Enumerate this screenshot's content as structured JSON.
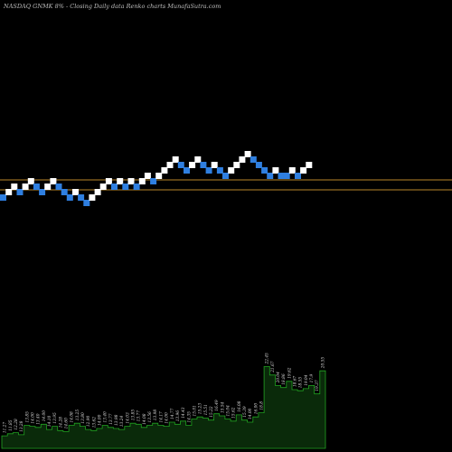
{
  "chart_data": {
    "type": "renko",
    "title": "NASDAQ GNMK 8% - Closing Daily data Renko charts MunafaSutra.com",
    "colors": {
      "background": "#000000",
      "up_brick": "#ffffff",
      "down_brick": "#2f7fe0",
      "reference_line": "#b8862a",
      "volume_fill": "#0a2a0a",
      "volume_stroke": "#21a321",
      "volume_label": "#d8d8d8"
    },
    "bricks": [
      {
        "d": "down",
        "l": 0
      },
      {
        "d": "up",
        "l": 1
      },
      {
        "d": "up",
        "l": 2
      },
      {
        "d": "down",
        "l": 1
      },
      {
        "d": "up",
        "l": 2
      },
      {
        "d": "up",
        "l": 3
      },
      {
        "d": "down",
        "l": 2
      },
      {
        "d": "down",
        "l": 1
      },
      {
        "d": "up",
        "l": 2
      },
      {
        "d": "up",
        "l": 3
      },
      {
        "d": "down",
        "l": 2
      },
      {
        "d": "down",
        "l": 1
      },
      {
        "d": "down",
        "l": 0
      },
      {
        "d": "up",
        "l": 1
      },
      {
        "d": "down",
        "l": 0
      },
      {
        "d": "down",
        "l": -1
      },
      {
        "d": "up",
        "l": 0
      },
      {
        "d": "up",
        "l": 1
      },
      {
        "d": "up",
        "l": 2
      },
      {
        "d": "up",
        "l": 3
      },
      {
        "d": "down",
        "l": 2
      },
      {
        "d": "up",
        "l": 3
      },
      {
        "d": "down",
        "l": 2
      },
      {
        "d": "up",
        "l": 3
      },
      {
        "d": "down",
        "l": 2
      },
      {
        "d": "up",
        "l": 3
      },
      {
        "d": "up",
        "l": 4
      },
      {
        "d": "down",
        "l": 3
      },
      {
        "d": "up",
        "l": 4
      },
      {
        "d": "up",
        "l": 5
      },
      {
        "d": "up",
        "l": 6
      },
      {
        "d": "up",
        "l": 7
      },
      {
        "d": "down",
        "l": 6
      },
      {
        "d": "down",
        "l": 5
      },
      {
        "d": "up",
        "l": 6
      },
      {
        "d": "up",
        "l": 7
      },
      {
        "d": "down",
        "l": 6
      },
      {
        "d": "down",
        "l": 5
      },
      {
        "d": "up",
        "l": 6
      },
      {
        "d": "down",
        "l": 5
      },
      {
        "d": "down",
        "l": 4
      },
      {
        "d": "up",
        "l": 5
      },
      {
        "d": "up",
        "l": 6
      },
      {
        "d": "up",
        "l": 7
      },
      {
        "d": "up",
        "l": 8
      },
      {
        "d": "down",
        "l": 7
      },
      {
        "d": "down",
        "l": 6
      },
      {
        "d": "down",
        "l": 5
      },
      {
        "d": "down",
        "l": 4
      },
      {
        "d": "up",
        "l": 5
      },
      {
        "d": "down",
        "l": 4
      },
      {
        "d": "down",
        "l": 4
      },
      {
        "d": "up",
        "l": 5
      },
      {
        "d": "down",
        "l": 4
      },
      {
        "d": "up",
        "l": 5
      },
      {
        "d": "up",
        "l": 6
      }
    ],
    "volume_labels": [
      "11.27",
      "11.85",
      "12.28",
      "13.28",
      "13.85",
      "14.00",
      "13.40",
      "14.00",
      "14.10",
      "13.95",
      "14.28",
      "14.60",
      "14.08",
      "13.25",
      "13.80",
      "12.90",
      "13.62",
      "14.00",
      "13.40",
      "13.77",
      "13.98",
      "13.24",
      "14.03",
      "13.85",
      "13.77",
      "14.08",
      "13.56",
      "13.98",
      "14.17",
      "14.00",
      "14.77",
      "13.96",
      "14.43",
      "14.35",
      "15.01",
      "15.23",
      "15.51",
      "15.22",
      "16.49",
      "15.54",
      "15.04",
      "15.62",
      "16.08",
      "15.39",
      "14.00",
      "16.00",
      "18.8",
      "22.45",
      "21.67",
      "20.04",
      "18.86",
      "19.62",
      "18.67",
      "18.55",
      "19.04",
      "17.9",
      "19.37",
      "20.55"
    ],
    "volume_values": [
      12,
      14,
      15,
      13,
      22,
      21,
      20,
      23,
      18,
      21,
      17,
      16,
      22,
      24,
      21,
      18,
      17,
      19,
      22,
      20,
      19,
      18,
      21,
      24,
      23,
      20,
      22,
      24,
      22,
      21,
      25,
      23,
      26,
      22,
      28,
      30,
      29,
      27,
      33,
      31,
      28,
      26,
      32,
      27,
      25,
      30,
      34,
      78,
      70,
      60,
      58,
      64,
      56,
      55,
      57,
      60,
      52,
      74
    ]
  }
}
